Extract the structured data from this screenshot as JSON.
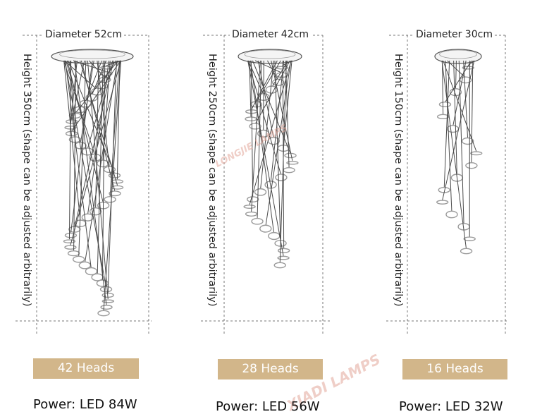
{
  "products": [
    {
      "diameter": "Diameter 52cm",
      "height": "Height 350cm (shape can be adjusted arbitrarily)",
      "heads": "42 Heads",
      "power": "Power: LED 84W"
    },
    {
      "diameter": "Diameter 42cm",
      "height": "Height 250cm (shape can be adjusted arbitrarily)",
      "heads": "28 Heads",
      "power": "Power: LED 56W"
    },
    {
      "diameter": "Diameter 30cm",
      "height": "Height 150cm (shape can be adjusted arbitrarily)",
      "heads": "16 Heads",
      "power": "Power: LED 32W"
    }
  ],
  "watermarks": [
    "LONGJIE LAMPS",
    "XIADI LAMPS"
  ],
  "colors": {
    "heads_box": "#d2b68a",
    "heads_text": "#ffffff",
    "dashed_line": "#777777",
    "rod": "#4a4a4a",
    "disc": "#9a9a9a",
    "watermark": "#e3a79a"
  },
  "icons": [
    "chandelier-illustration",
    "chandelier-illustration",
    "chandelier-illustration"
  ]
}
